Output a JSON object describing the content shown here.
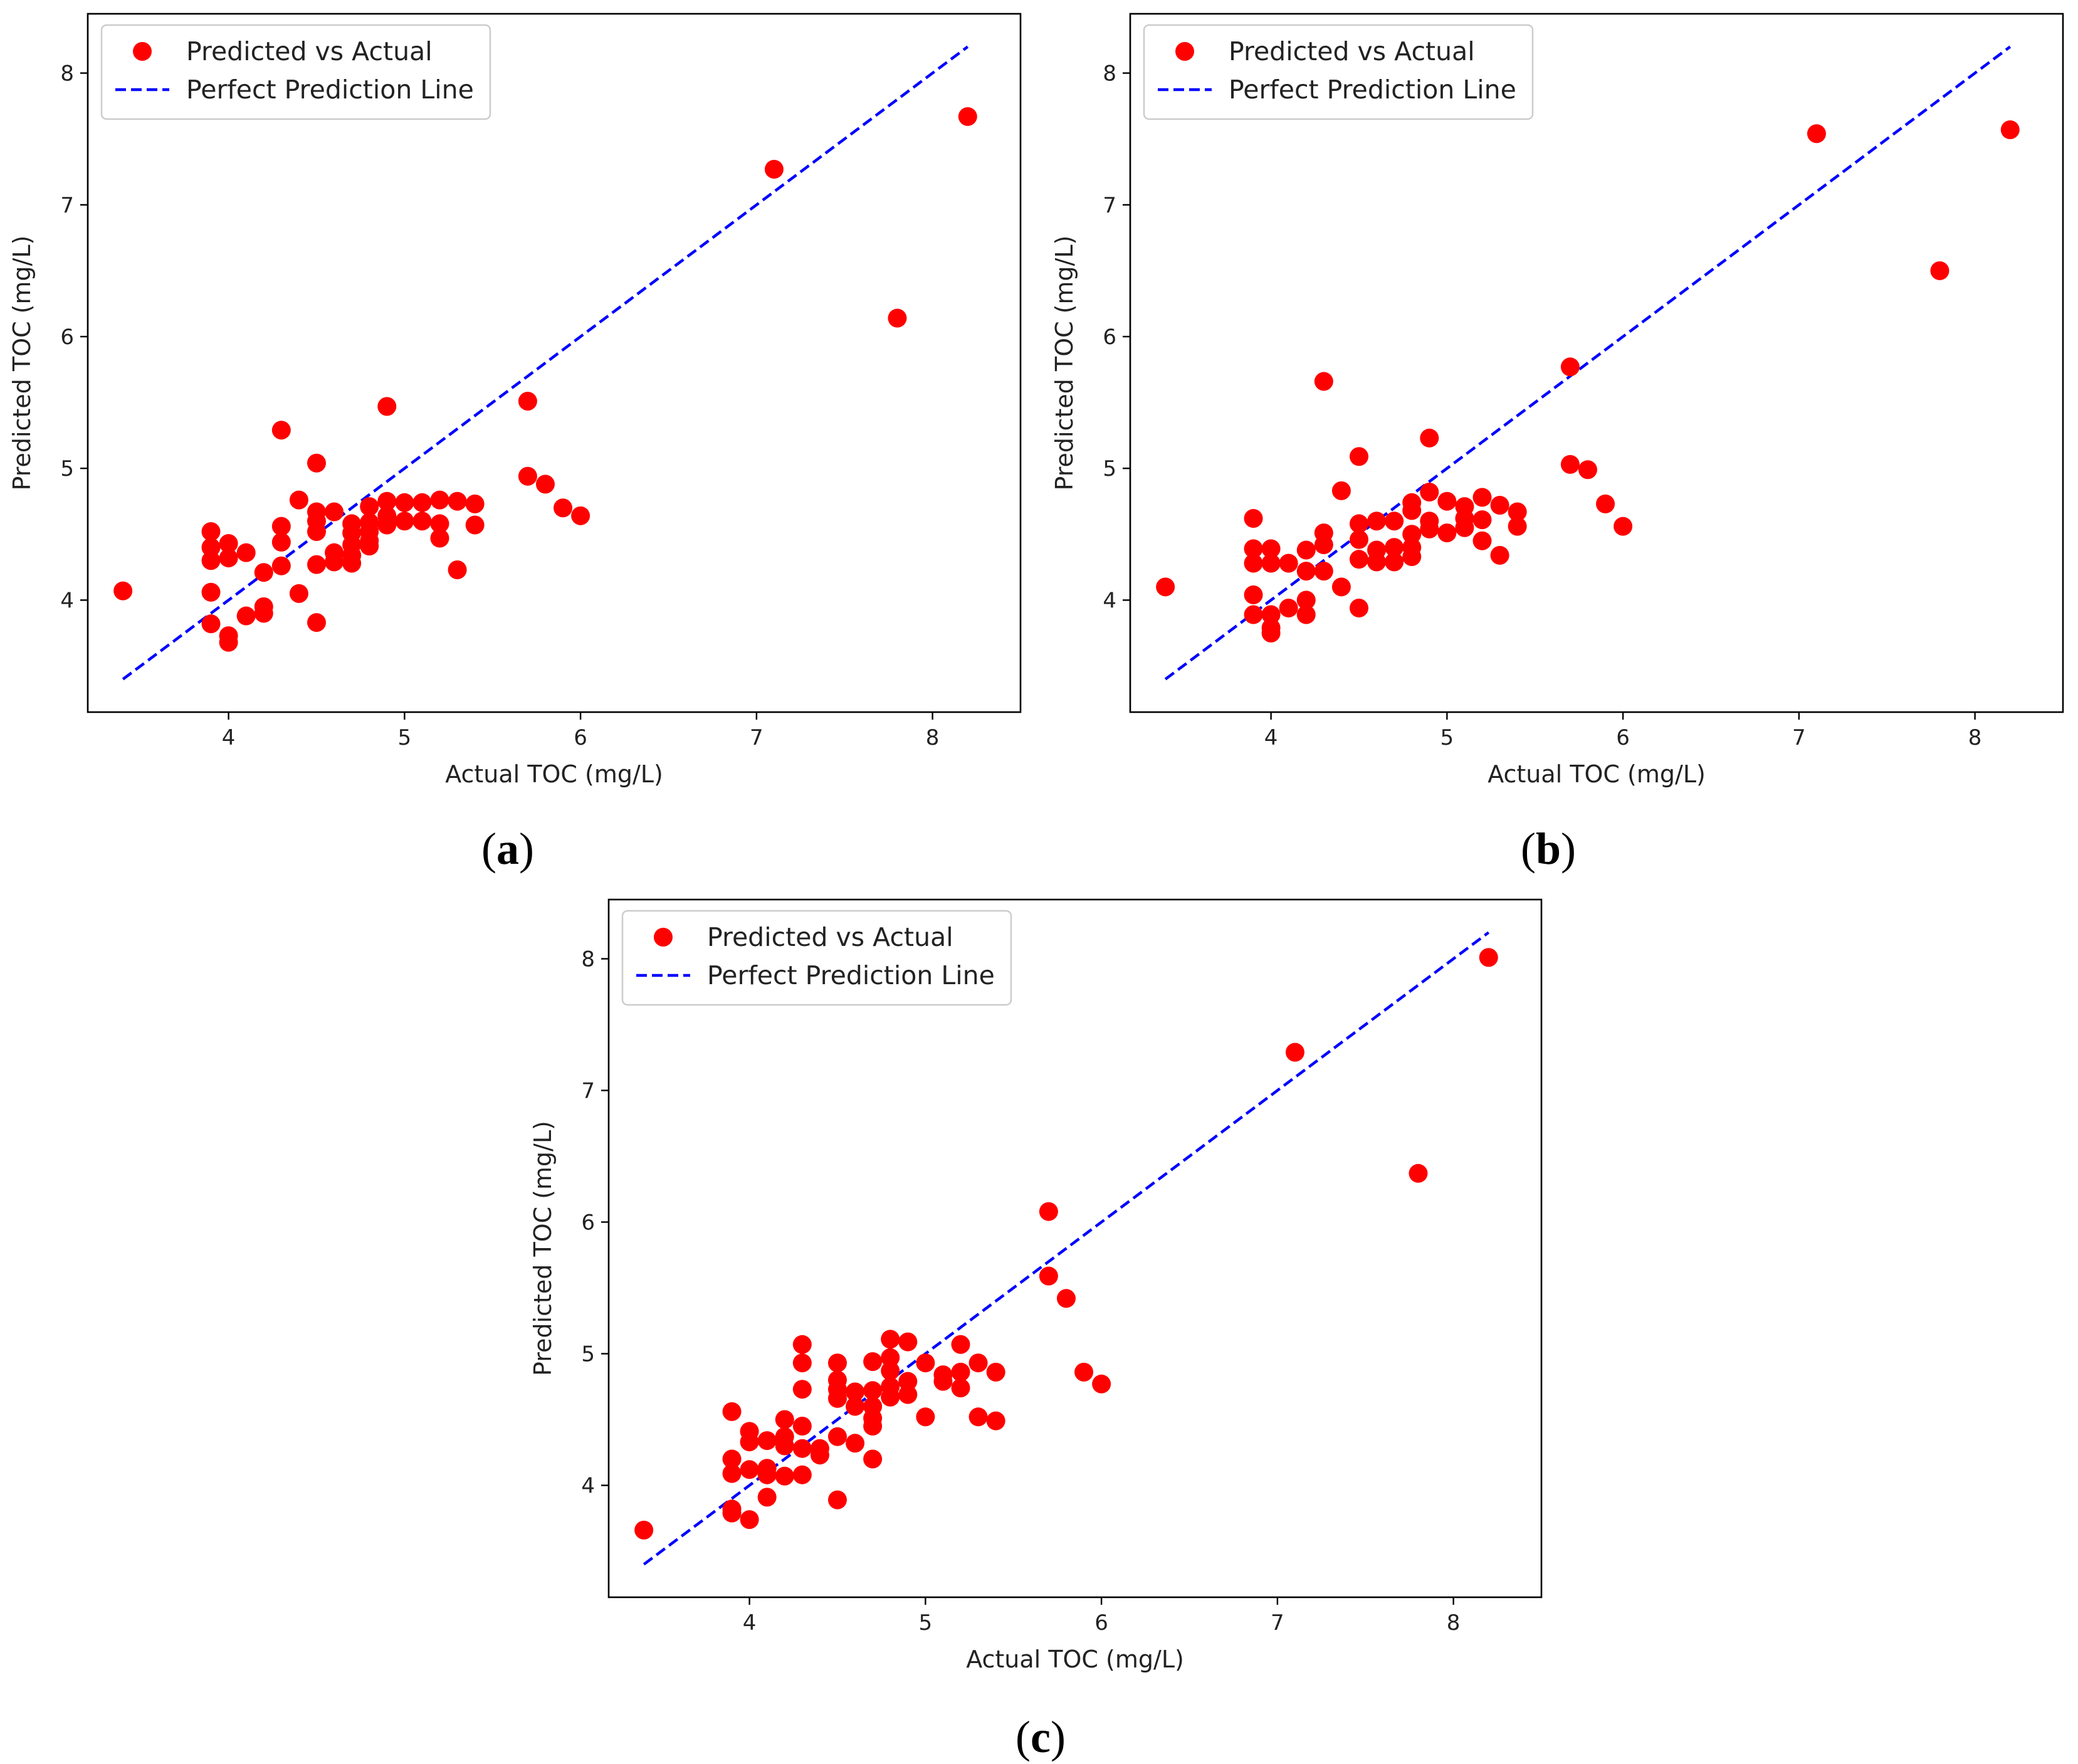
{
  "figure": {
    "point_color": "#ff0000",
    "line_color": "#0000ff",
    "frame_color": "#000000"
  },
  "chart_data": [
    {
      "id": "a",
      "type": "scatter",
      "panel_label": "a",
      "xlabel": "Actual TOC (mg/L)",
      "ylabel": "Predicted TOC (mg/L)",
      "xlim": [
        3.2,
        8.5
      ],
      "ylim": [
        3.15,
        8.45
      ],
      "xticks": [
        4,
        5,
        6,
        7,
        8
      ],
      "yticks": [
        4,
        5,
        6,
        7,
        8
      ],
      "legend": {
        "location": "upper-left",
        "entries": [
          "Predicted vs Actual",
          "Perfect Prediction Line"
        ]
      },
      "reference_line": {
        "name": "Perfect Prediction Line",
        "from": [
          3.4,
          3.4
        ],
        "to": [
          8.2,
          8.2
        ]
      },
      "series": [
        {
          "name": "Predicted vs Actual",
          "points": [
            [
              3.4,
              4.07
            ],
            [
              3.9,
              4.52
            ],
            [
              3.9,
              4.4
            ],
            [
              3.9,
              4.3
            ],
            [
              3.9,
              4.06
            ],
            [
              3.9,
              3.82
            ],
            [
              4.0,
              4.43
            ],
            [
              4.0,
              4.32
            ],
            [
              4.0,
              3.73
            ],
            [
              4.0,
              3.68
            ],
            [
              4.1,
              4.36
            ],
            [
              4.1,
              3.88
            ],
            [
              4.2,
              4.21
            ],
            [
              4.2,
              3.95
            ],
            [
              4.2,
              3.9
            ],
            [
              4.3,
              5.29
            ],
            [
              4.3,
              4.56
            ],
            [
              4.3,
              4.44
            ],
            [
              4.3,
              4.26
            ],
            [
              4.4,
              4.76
            ],
            [
              4.4,
              4.05
            ],
            [
              4.5,
              5.04
            ],
            [
              4.5,
              4.67
            ],
            [
              4.5,
              4.6
            ],
            [
              4.5,
              4.52
            ],
            [
              4.5,
              4.27
            ],
            [
              4.5,
              3.83
            ],
            [
              4.6,
              4.67
            ],
            [
              4.6,
              4.36
            ],
            [
              4.6,
              4.29
            ],
            [
              4.7,
              4.58
            ],
            [
              4.7,
              4.51
            ],
            [
              4.7,
              4.42
            ],
            [
              4.7,
              4.34
            ],
            [
              4.7,
              4.28
            ],
            [
              4.8,
              4.71
            ],
            [
              4.8,
              4.59
            ],
            [
              4.8,
              4.52
            ],
            [
              4.8,
              4.45
            ],
            [
              4.8,
              4.41
            ],
            [
              4.9,
              5.47
            ],
            [
              4.9,
              4.75
            ],
            [
              4.9,
              4.64
            ],
            [
              4.9,
              4.57
            ],
            [
              5.0,
              4.74
            ],
            [
              5.0,
              4.6
            ],
            [
              5.1,
              4.74
            ],
            [
              5.1,
              4.6
            ],
            [
              5.2,
              4.76
            ],
            [
              5.2,
              4.58
            ],
            [
              5.2,
              4.47
            ],
            [
              5.3,
              4.75
            ],
            [
              5.3,
              4.23
            ],
            [
              5.4,
              4.73
            ],
            [
              5.4,
              4.57
            ],
            [
              5.7,
              5.51
            ],
            [
              5.7,
              4.94
            ],
            [
              5.8,
              4.88
            ],
            [
              5.9,
              4.7
            ],
            [
              6.0,
              4.64
            ],
            [
              7.1,
              7.27
            ],
            [
              7.8,
              6.14
            ],
            [
              8.2,
              7.67
            ]
          ]
        }
      ]
    },
    {
      "id": "b",
      "type": "scatter",
      "panel_label": "b",
      "xlabel": "Actual TOC (mg/L)",
      "ylabel": "Predicted TOC (mg/L)",
      "xlim": [
        3.2,
        8.5
      ],
      "ylim": [
        3.15,
        8.45
      ],
      "xticks": [
        4,
        5,
        6,
        7,
        8
      ],
      "yticks": [
        4,
        5,
        6,
        7,
        8
      ],
      "legend": {
        "location": "upper-left",
        "entries": [
          "Predicted vs Actual",
          "Perfect Prediction Line"
        ]
      },
      "reference_line": {
        "name": "Perfect Prediction Line",
        "from": [
          3.4,
          3.4
        ],
        "to": [
          8.2,
          8.2
        ]
      },
      "series": [
        {
          "name": "Predicted vs Actual",
          "points": [
            [
              3.4,
              4.1
            ],
            [
              3.9,
              4.62
            ],
            [
              3.9,
              4.39
            ],
            [
              3.9,
              4.28
            ],
            [
              3.9,
              4.04
            ],
            [
              3.9,
              3.89
            ],
            [
              4.0,
              4.39
            ],
            [
              4.0,
              4.28
            ],
            [
              4.0,
              3.89
            ],
            [
              4.0,
              3.79
            ],
            [
              4.0,
              3.75
            ],
            [
              4.1,
              4.28
            ],
            [
              4.1,
              3.94
            ],
            [
              4.2,
              4.38
            ],
            [
              4.2,
              4.22
            ],
            [
              4.2,
              4.0
            ],
            [
              4.2,
              3.89
            ],
            [
              4.3,
              5.66
            ],
            [
              4.3,
              4.51
            ],
            [
              4.3,
              4.42
            ],
            [
              4.3,
              4.22
            ],
            [
              4.4,
              4.83
            ],
            [
              4.4,
              4.1
            ],
            [
              4.5,
              5.09
            ],
            [
              4.5,
              4.58
            ],
            [
              4.5,
              4.46
            ],
            [
              4.5,
              4.31
            ],
            [
              4.5,
              3.94
            ],
            [
              4.6,
              4.6
            ],
            [
              4.6,
              4.38
            ],
            [
              4.6,
              4.29
            ],
            [
              4.7,
              4.6
            ],
            [
              4.7,
              4.4
            ],
            [
              4.7,
              4.29
            ],
            [
              4.8,
              4.74
            ],
            [
              4.8,
              4.68
            ],
            [
              4.8,
              4.5
            ],
            [
              4.8,
              4.4
            ],
            [
              4.8,
              4.33
            ],
            [
              4.9,
              5.23
            ],
            [
              4.9,
              4.82
            ],
            [
              4.9,
              4.6
            ],
            [
              4.9,
              4.54
            ],
            [
              5.0,
              4.75
            ],
            [
              5.0,
              4.51
            ],
            [
              5.1,
              4.71
            ],
            [
              5.1,
              4.62
            ],
            [
              5.1,
              4.55
            ],
            [
              5.2,
              4.78
            ],
            [
              5.2,
              4.61
            ],
            [
              5.2,
              4.45
            ],
            [
              5.3,
              4.72
            ],
            [
              5.3,
              4.34
            ],
            [
              5.4,
              4.67
            ],
            [
              5.4,
              4.56
            ],
            [
              5.7,
              5.77
            ],
            [
              5.7,
              5.03
            ],
            [
              5.8,
              4.99
            ],
            [
              5.9,
              4.73
            ],
            [
              6.0,
              4.56
            ],
            [
              7.1,
              7.54
            ],
            [
              7.8,
              6.5
            ],
            [
              8.2,
              7.57
            ]
          ]
        }
      ]
    },
    {
      "id": "c",
      "type": "scatter",
      "panel_label": "c",
      "xlabel": "Actual TOC (mg/L)",
      "ylabel": "Predicted TOC (mg/L)",
      "xlim": [
        3.2,
        8.5
      ],
      "ylim": [
        3.15,
        8.45
      ],
      "xticks": [
        4,
        5,
        6,
        7,
        8
      ],
      "yticks": [
        4,
        5,
        6,
        7,
        8
      ],
      "legend": {
        "location": "upper-left",
        "entries": [
          "Predicted vs Actual",
          "Perfect Prediction Line"
        ]
      },
      "reference_line": {
        "name": "Perfect Prediction Line",
        "from": [
          3.4,
          3.4
        ],
        "to": [
          8.2,
          8.2
        ]
      },
      "series": [
        {
          "name": "Predicted vs Actual",
          "points": [
            [
              3.4,
              3.66
            ],
            [
              3.9,
              4.56
            ],
            [
              3.9,
              4.2
            ],
            [
              3.9,
              4.09
            ],
            [
              3.9,
              3.82
            ],
            [
              3.9,
              3.79
            ],
            [
              4.0,
              4.41
            ],
            [
              4.0,
              4.33
            ],
            [
              4.0,
              4.12
            ],
            [
              4.0,
              3.74
            ],
            [
              4.1,
              4.34
            ],
            [
              4.1,
              4.13
            ],
            [
              4.1,
              4.08
            ],
            [
              4.1,
              3.91
            ],
            [
              4.2,
              4.5
            ],
            [
              4.2,
              4.37
            ],
            [
              4.2,
              4.3
            ],
            [
              4.2,
              4.07
            ],
            [
              4.3,
              5.07
            ],
            [
              4.3,
              4.93
            ],
            [
              4.3,
              4.73
            ],
            [
              4.3,
              4.45
            ],
            [
              4.3,
              4.28
            ],
            [
              4.3,
              4.08
            ],
            [
              4.4,
              4.28
            ],
            [
              4.4,
              4.23
            ],
            [
              4.5,
              4.93
            ],
            [
              4.5,
              4.8
            ],
            [
              4.5,
              4.73
            ],
            [
              4.5,
              4.66
            ],
            [
              4.5,
              4.37
            ],
            [
              4.5,
              3.89
            ],
            [
              4.6,
              4.71
            ],
            [
              4.6,
              4.6
            ],
            [
              4.6,
              4.32
            ],
            [
              4.7,
              4.94
            ],
            [
              4.7,
              4.72
            ],
            [
              4.7,
              4.6
            ],
            [
              4.7,
              4.51
            ],
            [
              4.7,
              4.45
            ],
            [
              4.7,
              4.2
            ],
            [
              4.8,
              5.11
            ],
            [
              4.8,
              4.97
            ],
            [
              4.8,
              4.87
            ],
            [
              4.8,
              4.75
            ],
            [
              4.8,
              4.67
            ],
            [
              4.9,
              5.09
            ],
            [
              4.9,
              4.79
            ],
            [
              4.9,
              4.69
            ],
            [
              5.0,
              4.93
            ],
            [
              5.0,
              4.52
            ],
            [
              5.1,
              4.84
            ],
            [
              5.1,
              4.79
            ],
            [
              5.2,
              5.07
            ],
            [
              5.2,
              4.86
            ],
            [
              5.2,
              4.74
            ],
            [
              5.3,
              4.93
            ],
            [
              5.3,
              4.52
            ],
            [
              5.4,
              4.86
            ],
            [
              5.4,
              4.49
            ],
            [
              5.7,
              6.08
            ],
            [
              5.7,
              5.59
            ],
            [
              5.8,
              5.42
            ],
            [
              5.9,
              4.86
            ],
            [
              6.0,
              4.77
            ],
            [
              7.1,
              7.29
            ],
            [
              7.8,
              6.37
            ],
            [
              8.2,
              8.01
            ]
          ]
        }
      ]
    }
  ]
}
